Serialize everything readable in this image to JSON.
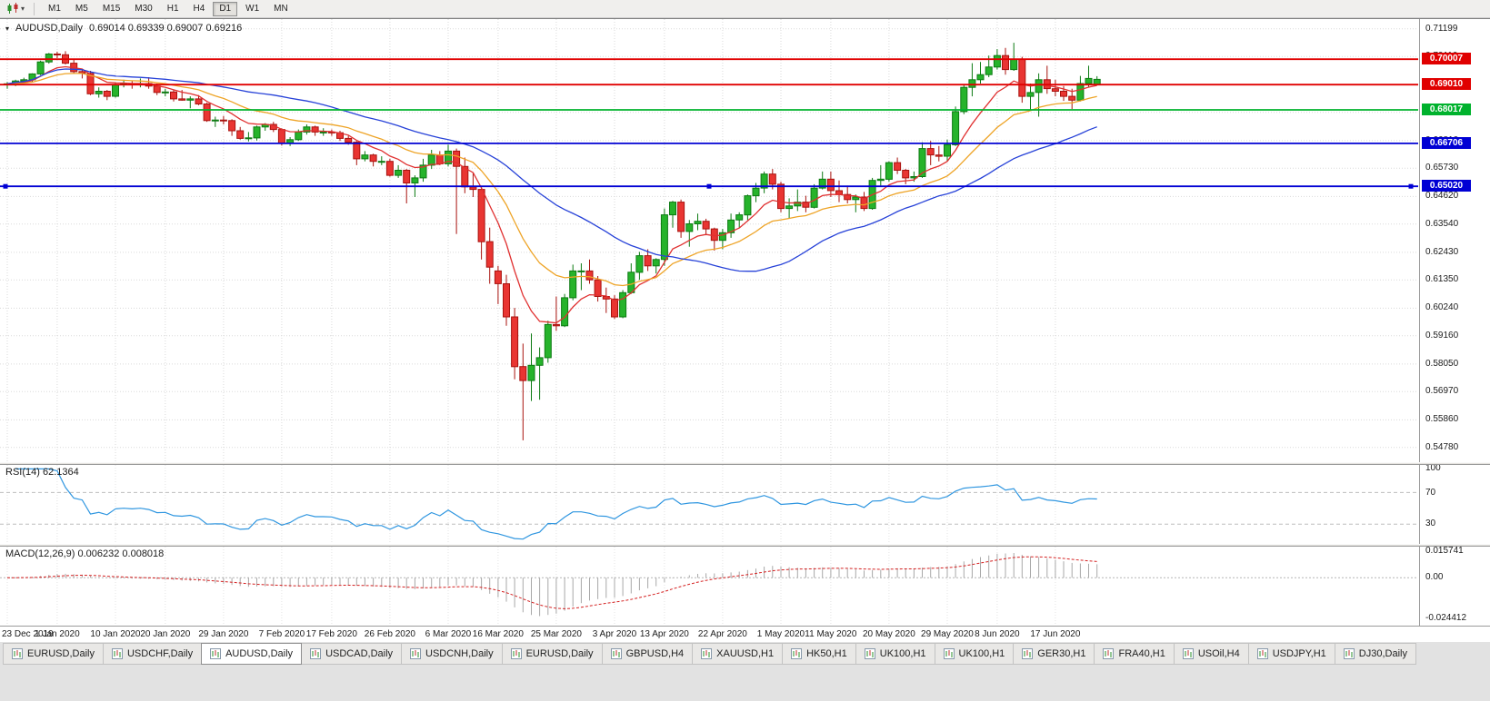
{
  "toolbar": {
    "timeframes": [
      {
        "label": "M1",
        "active": false
      },
      {
        "label": "M5",
        "active": false
      },
      {
        "label": "M15",
        "active": false
      },
      {
        "label": "M30",
        "active": false
      },
      {
        "label": "H1",
        "active": false
      },
      {
        "label": "H4",
        "active": false
      },
      {
        "label": "D1",
        "active": true
      },
      {
        "label": "W1",
        "active": false
      },
      {
        "label": "MN",
        "active": false
      }
    ]
  },
  "chart_header": {
    "symbol": "AUDUSD,Daily",
    "ohlc": "0.69014 0.69339 0.69007 0.69216"
  },
  "chart_data": {
    "type": "candlestick",
    "title": "AUDUSD Daily",
    "up_color": "#26b32b",
    "down_color": "#e93532",
    "up_edge": "#0c7a12",
    "down_edge": "#a8120e",
    "x_tick_labels": [
      "23 Dec 2019",
      "1 Jan 2020",
      "10 Jan 2020",
      "20 Jan 2020",
      "29 Jan 2020",
      "7 Feb 2020",
      "17 Feb 2020",
      "26 Feb 2020",
      "6 Mar 2020",
      "16 Mar 2020",
      "25 Mar 2020",
      "3 Apr 2020",
      "13 Apr 2020",
      "22 Apr 2020",
      "1 May 2020",
      "11 May 2020",
      "20 May 2020",
      "29 May 2020",
      "8 Jun 2020",
      "17 Jun 2020"
    ],
    "y_axis": {
      "min": 0.542,
      "max": 0.7158,
      "grid_labels": [
        "0.71199",
        "0.70110",
        "0.69000",
        "0.67920",
        "0.66810",
        "0.65730",
        "0.64620",
        "0.63540",
        "0.62430",
        "0.61350",
        "0.60240",
        "0.59160",
        "0.58050",
        "0.56970",
        "0.55860",
        "0.54780"
      ]
    },
    "hlines": [
      {
        "label": "0.70007",
        "color": "#e00000",
        "selected": false
      },
      {
        "label": "0.69010",
        "color": "#e00000",
        "selected": false
      },
      {
        "label": "0.68017",
        "color": "#00b22d",
        "selected": false
      },
      {
        "label": "0.66706",
        "color": "#0000d4",
        "selected": false
      },
      {
        "label": "0.65020",
        "color": "#0000d4",
        "selected": true
      }
    ],
    "moving_averages": [
      {
        "period": 8,
        "method": "ema",
        "color": "#e03030"
      },
      {
        "period": 18,
        "method": "ema",
        "color": "#eea427"
      },
      {
        "period": 34,
        "method": "sma",
        "color": "#2742d8"
      }
    ],
    "candles": [
      [
        "23 Dec 2019",
        0.69,
        0.6911,
        0.6885,
        0.6904
      ],
      [
        "24 Dec 2019",
        0.6904,
        0.692,
        0.6895,
        0.6915
      ],
      [
        "26 Dec 2019",
        0.6915,
        0.6928,
        0.6905,
        0.692
      ],
      [
        "27 Dec 2019",
        0.692,
        0.6945,
        0.6912,
        0.6943
      ],
      [
        "30 Dec 2019",
        0.6943,
        0.6995,
        0.6938,
        0.699
      ],
      [
        "31 Dec 2019",
        0.699,
        0.7025,
        0.6983,
        0.7021
      ],
      [
        "1 Jan 2020",
        0.7021,
        0.703,
        0.7005,
        0.7018
      ],
      [
        "2 Jan 2020",
        0.7018,
        0.7032,
        0.698,
        0.6985
      ],
      [
        "3 Jan 2020",
        0.6985,
        0.7,
        0.6945,
        0.6952
      ],
      [
        "6 Jan 2020",
        0.6952,
        0.696,
        0.6925,
        0.6945
      ],
      [
        "7 Jan 2020",
        0.6945,
        0.6955,
        0.686,
        0.6865
      ],
      [
        "8 Jan 2020",
        0.6865,
        0.689,
        0.685,
        0.6875
      ],
      [
        "9 Jan 2020",
        0.6875,
        0.688,
        0.684,
        0.6855
      ],
      [
        "10 Jan 2020",
        0.6855,
        0.691,
        0.685,
        0.69
      ],
      [
        "13 Jan 2020",
        0.69,
        0.692,
        0.689,
        0.6905
      ],
      [
        "14 Jan 2020",
        0.6905,
        0.6915,
        0.6885,
        0.69
      ],
      [
        "15 Jan 2020",
        0.69,
        0.6925,
        0.689,
        0.6905
      ],
      [
        "16 Jan 2020",
        0.6905,
        0.693,
        0.6885,
        0.6895
      ],
      [
        "17 Jan 2020",
        0.6895,
        0.6905,
        0.686,
        0.687
      ],
      [
        "20 Jan 2020",
        0.687,
        0.6885,
        0.6855,
        0.6872
      ],
      [
        "21 Jan 2020",
        0.6872,
        0.688,
        0.6835,
        0.6845
      ],
      [
        "22 Jan 2020",
        0.6845,
        0.688,
        0.6838,
        0.684
      ],
      [
        "23 Jan 2020",
        0.684,
        0.6855,
        0.6808,
        0.6845
      ],
      [
        "24 Jan 2020",
        0.6845,
        0.686,
        0.682,
        0.6825
      ],
      [
        "27 Jan 2020",
        0.6825,
        0.683,
        0.6755,
        0.676
      ],
      [
        "28 Jan 2020",
        0.676,
        0.6775,
        0.6735,
        0.6762
      ],
      [
        "29 Jan 2020",
        0.6762,
        0.6778,
        0.6745,
        0.676
      ],
      [
        "30 Jan 2020",
        0.676,
        0.6765,
        0.67,
        0.672
      ],
      [
        "31 Jan 2020",
        0.672,
        0.6735,
        0.6685,
        0.669
      ],
      [
        "3 Feb 2020",
        0.669,
        0.6715,
        0.6678,
        0.6692
      ],
      [
        "4 Feb 2020",
        0.6692,
        0.674,
        0.6682,
        0.6735
      ],
      [
        "5 Feb 2020",
        0.6735,
        0.675,
        0.672,
        0.6745
      ],
      [
        "6 Feb 2020",
        0.6745,
        0.6755,
        0.6715,
        0.6725
      ],
      [
        "7 Feb 2020",
        0.6725,
        0.673,
        0.6662,
        0.667
      ],
      [
        "10 Feb 2020",
        0.667,
        0.6695,
        0.666,
        0.6685
      ],
      [
        "11 Feb 2020",
        0.6685,
        0.6725,
        0.668,
        0.6715
      ],
      [
        "12 Feb 2020",
        0.6715,
        0.6745,
        0.6705,
        0.6735
      ],
      [
        "13 Feb 2020",
        0.6735,
        0.674,
        0.67,
        0.6715
      ],
      [
        "14 Feb 2020",
        0.6715,
        0.673,
        0.67,
        0.6715
      ],
      [
        "17 Feb 2020",
        0.6715,
        0.6725,
        0.67,
        0.6712
      ],
      [
        "18 Feb 2020",
        0.6712,
        0.672,
        0.668,
        0.669
      ],
      [
        "19 Feb 2020",
        0.669,
        0.67,
        0.6665,
        0.6675
      ],
      [
        "20 Feb 2020",
        0.6675,
        0.668,
        0.6585,
        0.661
      ],
      [
        "21 Feb 2020",
        0.661,
        0.664,
        0.66,
        0.6625
      ],
      [
        "24 Feb 2020",
        0.6625,
        0.663,
        0.658,
        0.66
      ],
      [
        "25 Feb 2020",
        0.66,
        0.662,
        0.6585,
        0.66
      ],
      [
        "26 Feb 2020",
        0.66,
        0.661,
        0.654,
        0.6545
      ],
      [
        "27 Feb 2020",
        0.6545,
        0.6585,
        0.6535,
        0.6565
      ],
      [
        "28 Feb 2020",
        0.6565,
        0.657,
        0.6435,
        0.6515
      ],
      [
        "2 Mar 2020",
        0.6515,
        0.6545,
        0.646,
        0.6535
      ],
      [
        "3 Mar 2020",
        0.6535,
        0.661,
        0.652,
        0.6585
      ],
      [
        "4 Mar 2020",
        0.6585,
        0.6645,
        0.657,
        0.6625
      ],
      [
        "5 Mar 2020",
        0.6625,
        0.664,
        0.6585,
        0.659
      ],
      [
        "6 Mar 2020",
        0.659,
        0.6665,
        0.658,
        0.664
      ],
      [
        "9 Mar 2020",
        0.664,
        0.665,
        0.6315,
        0.658
      ],
      [
        "10 Mar 2020",
        0.658,
        0.6615,
        0.6475,
        0.65
      ],
      [
        "11 Mar 2020",
        0.65,
        0.6555,
        0.646,
        0.649
      ],
      [
        "12 Mar 2020",
        0.649,
        0.65,
        0.6215,
        0.6285
      ],
      [
        "13 Mar 2020",
        0.6285,
        0.634,
        0.612,
        0.6185
      ],
      [
        "16 Mar 2020",
        0.617,
        0.619,
        0.604,
        0.612
      ],
      [
        "17 Mar 2020",
        0.612,
        0.6155,
        0.5955,
        0.599
      ],
      [
        "18 Mar 2020",
        0.599,
        0.6025,
        0.5745,
        0.5795
      ],
      [
        "19 Mar 2020",
        0.5795,
        0.5885,
        0.5506,
        0.574
      ],
      [
        "20 Mar 2020",
        0.574,
        0.5925,
        0.566,
        0.58
      ],
      [
        "23 Mar 2020",
        0.58,
        0.587,
        0.5665,
        0.583
      ],
      [
        "24 Mar 2020",
        0.583,
        0.5975,
        0.581,
        0.596
      ],
      [
        "25 Mar 2020",
        0.596,
        0.607,
        0.5935,
        0.5955
      ],
      [
        "26 Mar 2020",
        0.5955,
        0.608,
        0.595,
        0.6065
      ],
      [
        "27 Mar 2020",
        0.6065,
        0.6195,
        0.6055,
        0.617
      ],
      [
        "30 Mar 2020",
        0.617,
        0.62,
        0.6095,
        0.617
      ],
      [
        "31 Mar 2020",
        0.617,
        0.6215,
        0.612,
        0.6135
      ],
      [
        "1 Apr 2020",
        0.6135,
        0.615,
        0.605,
        0.607
      ],
      [
        "2 Apr 2020",
        0.607,
        0.6105,
        0.6005,
        0.606
      ],
      [
        "3 Apr 2020",
        0.606,
        0.6075,
        0.5982,
        0.599
      ],
      [
        "6 Apr 2020",
        0.599,
        0.6095,
        0.5985,
        0.6085
      ],
      [
        "7 Apr 2020",
        0.6085,
        0.62,
        0.608,
        0.6165
      ],
      [
        "8 Apr 2020",
        0.6165,
        0.6245,
        0.6135,
        0.623
      ],
      [
        "9 Apr 2020",
        0.623,
        0.6255,
        0.617,
        0.619
      ],
      [
        "10 Apr 2020",
        0.619,
        0.622,
        0.616,
        0.6215
      ],
      [
        "13 Apr 2020",
        0.6215,
        0.6415,
        0.619,
        0.639
      ],
      [
        "14 Apr 2020",
        0.639,
        0.6445,
        0.634,
        0.644
      ],
      [
        "15 Apr 2020",
        0.644,
        0.645,
        0.63,
        0.6325
      ],
      [
        "16 Apr 2020",
        0.6325,
        0.637,
        0.6265,
        0.6355
      ],
      [
        "17 Apr 2020",
        0.6355,
        0.6395,
        0.633,
        0.6365
      ],
      [
        "20 Apr 2020",
        0.6365,
        0.6375,
        0.631,
        0.6335
      ],
      [
        "21 Apr 2020",
        0.6335,
        0.634,
        0.625,
        0.629
      ],
      [
        "22 Apr 2020",
        0.629,
        0.6335,
        0.6255,
        0.632
      ],
      [
        "23 Apr 2020",
        0.632,
        0.6395,
        0.63,
        0.637
      ],
      [
        "24 Apr 2020",
        0.637,
        0.64,
        0.634,
        0.639
      ],
      [
        "27 Apr 2020",
        0.639,
        0.647,
        0.637,
        0.6465
      ],
      [
        "28 Apr 2020",
        0.6465,
        0.6515,
        0.644,
        0.6495
      ],
      [
        "29 Apr 2020",
        0.6495,
        0.656,
        0.6475,
        0.655
      ],
      [
        "30 Apr 2020",
        0.655,
        0.657,
        0.649,
        0.651
      ],
      [
        "1 May 2020",
        0.651,
        0.652,
        0.64,
        0.6415
      ],
      [
        "4 May 2020",
        0.6415,
        0.6455,
        0.6375,
        0.6425
      ],
      [
        "5 May 2020",
        0.6425,
        0.649,
        0.6405,
        0.644
      ],
      [
        "6 May 2020",
        0.644,
        0.6465,
        0.64,
        0.642
      ],
      [
        "7 May 2020",
        0.642,
        0.651,
        0.6415,
        0.6495
      ],
      [
        "8 May 2020",
        0.6495,
        0.656,
        0.649,
        0.653
      ],
      [
        "11 May 2020",
        0.653,
        0.656,
        0.646,
        0.6485
      ],
      [
        "12 May 2020",
        0.6485,
        0.6525,
        0.644,
        0.647
      ],
      [
        "13 May 2020",
        0.647,
        0.6505,
        0.6435,
        0.645
      ],
      [
        "14 May 2020",
        0.645,
        0.647,
        0.64,
        0.646
      ],
      [
        "15 May 2020",
        0.646,
        0.648,
        0.6405,
        0.6415
      ],
      [
        "18 May 2020",
        0.6415,
        0.6535,
        0.641,
        0.6525
      ],
      [
        "19 May 2020",
        0.6525,
        0.6585,
        0.6505,
        0.653
      ],
      [
        "20 May 2020",
        0.653,
        0.66,
        0.652,
        0.6595
      ],
      [
        "21 May 2020",
        0.6595,
        0.6615,
        0.655,
        0.6565
      ],
      [
        "22 May 2020",
        0.6565,
        0.657,
        0.651,
        0.6535
      ],
      [
        "25 May 2020",
        0.6535,
        0.656,
        0.652,
        0.654
      ],
      [
        "26 May 2020",
        0.654,
        0.6675,
        0.6535,
        0.665
      ],
      [
        "27 May 2020",
        0.665,
        0.668,
        0.6585,
        0.6625
      ],
      [
        "28 May 2020",
        0.6625,
        0.666,
        0.66,
        0.662
      ],
      [
        "29 May 2020",
        0.662,
        0.6685,
        0.66,
        0.6665
      ],
      [
        "1 Jun 2020",
        0.6665,
        0.6815,
        0.666,
        0.6795
      ],
      [
        "2 Jun 2020",
        0.6795,
        0.69,
        0.6785,
        0.689
      ],
      [
        "3 Jun 2020",
        0.689,
        0.6985,
        0.6855,
        0.692
      ],
      [
        "4 Jun 2020",
        0.692,
        0.699,
        0.6905,
        0.694
      ],
      [
        "5 Jun 2020",
        0.694,
        0.7015,
        0.693,
        0.697
      ],
      [
        "8 Jun 2020",
        0.697,
        0.704,
        0.696,
        0.7015
      ],
      [
        "9 Jun 2020",
        0.7015,
        0.7045,
        0.694,
        0.696
      ],
      [
        "10 Jun 2020",
        0.696,
        0.7065,
        0.6955,
        0.7
      ],
      [
        "11 Jun 2020",
        0.7,
        0.701,
        0.683,
        0.6855
      ],
      [
        "12 Jun 2020",
        0.6855,
        0.6905,
        0.68,
        0.687
      ],
      [
        "15 Jun 2020",
        0.687,
        0.6945,
        0.6775,
        0.692
      ],
      [
        "16 Jun 2020",
        0.692,
        0.6975,
        0.6865,
        0.6885
      ],
      [
        "17 Jun 2020",
        0.6885,
        0.692,
        0.6855,
        0.6875
      ],
      [
        "18 Jun 2020",
        0.6875,
        0.6895,
        0.6837,
        0.6855
      ],
      [
        "19 Jun 2020",
        0.6855,
        0.6885,
        0.6805,
        0.684
      ],
      [
        "22 Jun 2020",
        0.684,
        0.6935,
        0.6835,
        0.6905
      ],
      [
        "23 Jun 2020",
        0.6905,
        0.6975,
        0.689,
        0.6925
      ],
      [
        "24 Jun 2020",
        0.69014,
        0.69339,
        0.69007,
        0.69216
      ]
    ]
  },
  "indicators": {
    "rsi": {
      "label": "RSI(14) 62.1364",
      "period": 14,
      "color": "#2f96e0",
      "levels": [
        "100",
        "70",
        "30"
      ],
      "dashed_levels": [
        70,
        30
      ],
      "range": [
        5,
        105
      ]
    },
    "macd": {
      "label": "MACD(12,26,9) 0.006232 0.008018",
      "fast": 12,
      "slow": 26,
      "signal": 9,
      "histogram_color": "#a8a8a8",
      "signal_color": "#d42020",
      "axis_labels": [
        "0.015741",
        "0.00",
        "-0.024412"
      ],
      "range": [
        -0.0285,
        0.0185
      ]
    }
  },
  "tabs": [
    {
      "label": "EURUSD,Daily",
      "active": false
    },
    {
      "label": "USDCHF,Daily",
      "active": false
    },
    {
      "label": "AUDUSD,Daily",
      "active": true
    },
    {
      "label": "USDCAD,Daily",
      "active": false
    },
    {
      "label": "USDCNH,Daily",
      "active": false
    },
    {
      "label": "EURUSD,Daily",
      "active": false
    },
    {
      "label": "GBPUSD,H4",
      "active": false
    },
    {
      "label": "XAUUSD,H1",
      "active": false
    },
    {
      "label": "HK50,H1",
      "active": false
    },
    {
      "label": "UK100,H1",
      "active": false
    },
    {
      "label": "UK100,H1",
      "active": false
    },
    {
      "label": "GER30,H1",
      "active": false
    },
    {
      "label": "FRA40,H1",
      "active": false
    },
    {
      "label": "USOil,H4",
      "active": false
    },
    {
      "label": "USDJPY,H1",
      "active": false
    },
    {
      "label": "DJ30,Daily",
      "active": false
    }
  ]
}
